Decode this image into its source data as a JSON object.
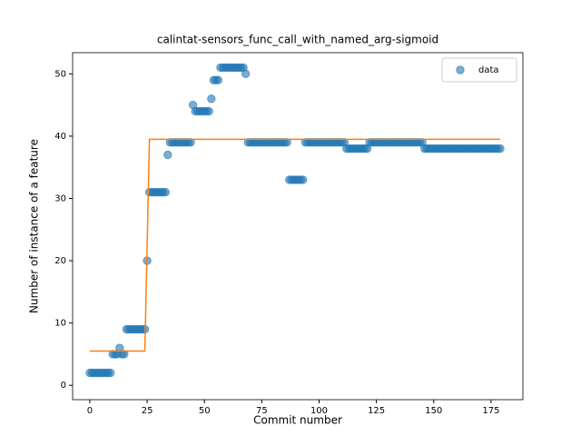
{
  "chart_data": {
    "type": "scatter",
    "title": "calintat-sensors_func_call_with_named_arg-sigmoid",
    "xlabel": "Commit number",
    "ylabel": "Number of instance of a feature",
    "xlim": [
      -7.5,
      188.9
    ],
    "ylim": [
      -2.3,
      53.4
    ],
    "xticks": [
      0,
      25,
      50,
      75,
      100,
      125,
      150,
      175
    ],
    "yticks": [
      0,
      10,
      20,
      30,
      40,
      50
    ],
    "legend": "upper right",
    "series": [
      {
        "name": "data",
        "color": "#1f77b4",
        "x": [
          0,
          1,
          2,
          3,
          4,
          5,
          6,
          7,
          8,
          9,
          10,
          11,
          12,
          13,
          14,
          15,
          16,
          17,
          18,
          19,
          20,
          21,
          22,
          23,
          24,
          25,
          26,
          27,
          28,
          29,
          30,
          31,
          32,
          33,
          34,
          35,
          36,
          37,
          38,
          39,
          40,
          41,
          42,
          43,
          44,
          45,
          46,
          47,
          48,
          49,
          50,
          51,
          52,
          53,
          54,
          55,
          56,
          57,
          58,
          59,
          60,
          61,
          62,
          63,
          64,
          65,
          66,
          67,
          68,
          69,
          70,
          71,
          72,
          73,
          74,
          75,
          76,
          77,
          78,
          79,
          80,
          81,
          82,
          83,
          84,
          85,
          86,
          87,
          88,
          89,
          90,
          91,
          92,
          93,
          94,
          95,
          96,
          97,
          98,
          99,
          100,
          101,
          102,
          103,
          104,
          105,
          106,
          107,
          108,
          109,
          110,
          111,
          112,
          113,
          114,
          115,
          116,
          117,
          118,
          119,
          120,
          121,
          122,
          123,
          124,
          125,
          126,
          127,
          128,
          129,
          130,
          131,
          132,
          133,
          134,
          135,
          136,
          137,
          138,
          139,
          140,
          141,
          142,
          143,
          144,
          145,
          146,
          147,
          148,
          149,
          150,
          151,
          152,
          153,
          154,
          155,
          156,
          157,
          158,
          159,
          160,
          161,
          162,
          163,
          164,
          165,
          166,
          167,
          168,
          169,
          170,
          171,
          172,
          173,
          174,
          175,
          176,
          177,
          178,
          179
        ],
        "values": [
          2,
          2,
          2,
          2,
          2,
          2,
          2,
          2,
          2,
          2,
          5,
          5,
          5,
          6,
          5,
          5,
          9,
          9,
          9,
          9,
          9,
          9,
          9,
          9,
          9,
          20,
          31,
          31,
          31,
          31,
          31,
          31,
          31,
          31,
          37,
          39,
          39,
          39,
          39,
          39,
          39,
          39,
          39,
          39,
          39,
          45,
          44,
          44,
          44,
          44,
          44,
          44,
          44,
          46,
          49,
          49,
          49,
          51,
          51,
          51,
          51,
          51,
          51,
          51,
          51,
          51,
          51,
          51,
          50,
          39,
          39,
          39,
          39,
          39,
          39,
          39,
          39,
          39,
          39,
          39,
          39,
          39,
          39,
          39,
          39,
          39,
          39,
          33,
          33,
          33,
          33,
          33,
          33,
          33,
          39,
          39,
          39,
          39,
          39,
          39,
          39,
          39,
          39,
          39,
          39,
          39,
          39,
          39,
          39,
          39,
          39,
          39,
          38,
          38,
          38,
          38,
          38,
          38,
          38,
          38,
          38,
          38,
          39,
          39,
          39,
          39,
          39,
          39,
          39,
          39,
          39,
          39,
          39,
          39,
          39,
          39,
          39,
          39,
          39,
          39,
          39,
          39,
          39,
          39,
          39,
          39,
          38,
          38,
          38,
          38,
          38,
          38,
          38,
          38,
          38,
          38,
          38,
          38,
          38,
          38,
          38,
          38,
          38,
          38,
          38,
          38,
          38,
          38,
          38,
          38,
          38,
          38,
          38,
          38,
          38,
          38,
          38,
          38,
          38,
          38
        ]
      }
    ],
    "fit_line": {
      "color": "#ff7f0e",
      "x": [
        0,
        24,
        26,
        179
      ],
      "values": [
        5.5,
        5.5,
        39.5,
        39.5
      ]
    }
  }
}
